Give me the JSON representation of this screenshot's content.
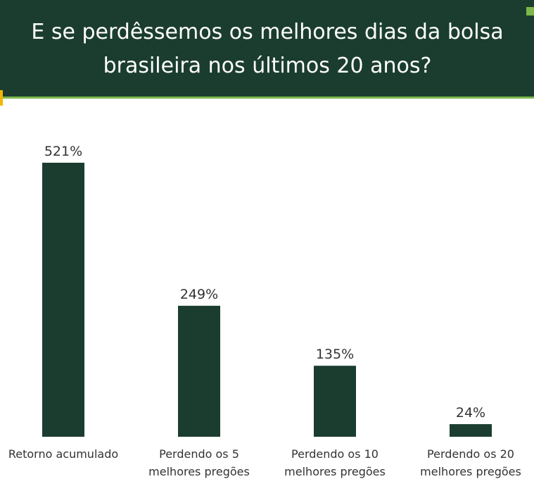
{
  "chart_data": {
    "type": "bar",
    "title": "E se perdêssemos os melhores dias da bolsa brasileira nos últimos 20 anos?",
    "categories": [
      "Retorno acumulado",
      "Perdendo os 5 melhores pregões",
      "Perdendo os 10 melhores pregões",
      "Perdendo os 20 melhores pregões"
    ],
    "values": [
      521,
      249,
      135,
      24
    ],
    "value_labels": [
      "521%",
      "249%",
      "135%",
      "24%"
    ],
    "color": "#1b3d30"
  }
}
